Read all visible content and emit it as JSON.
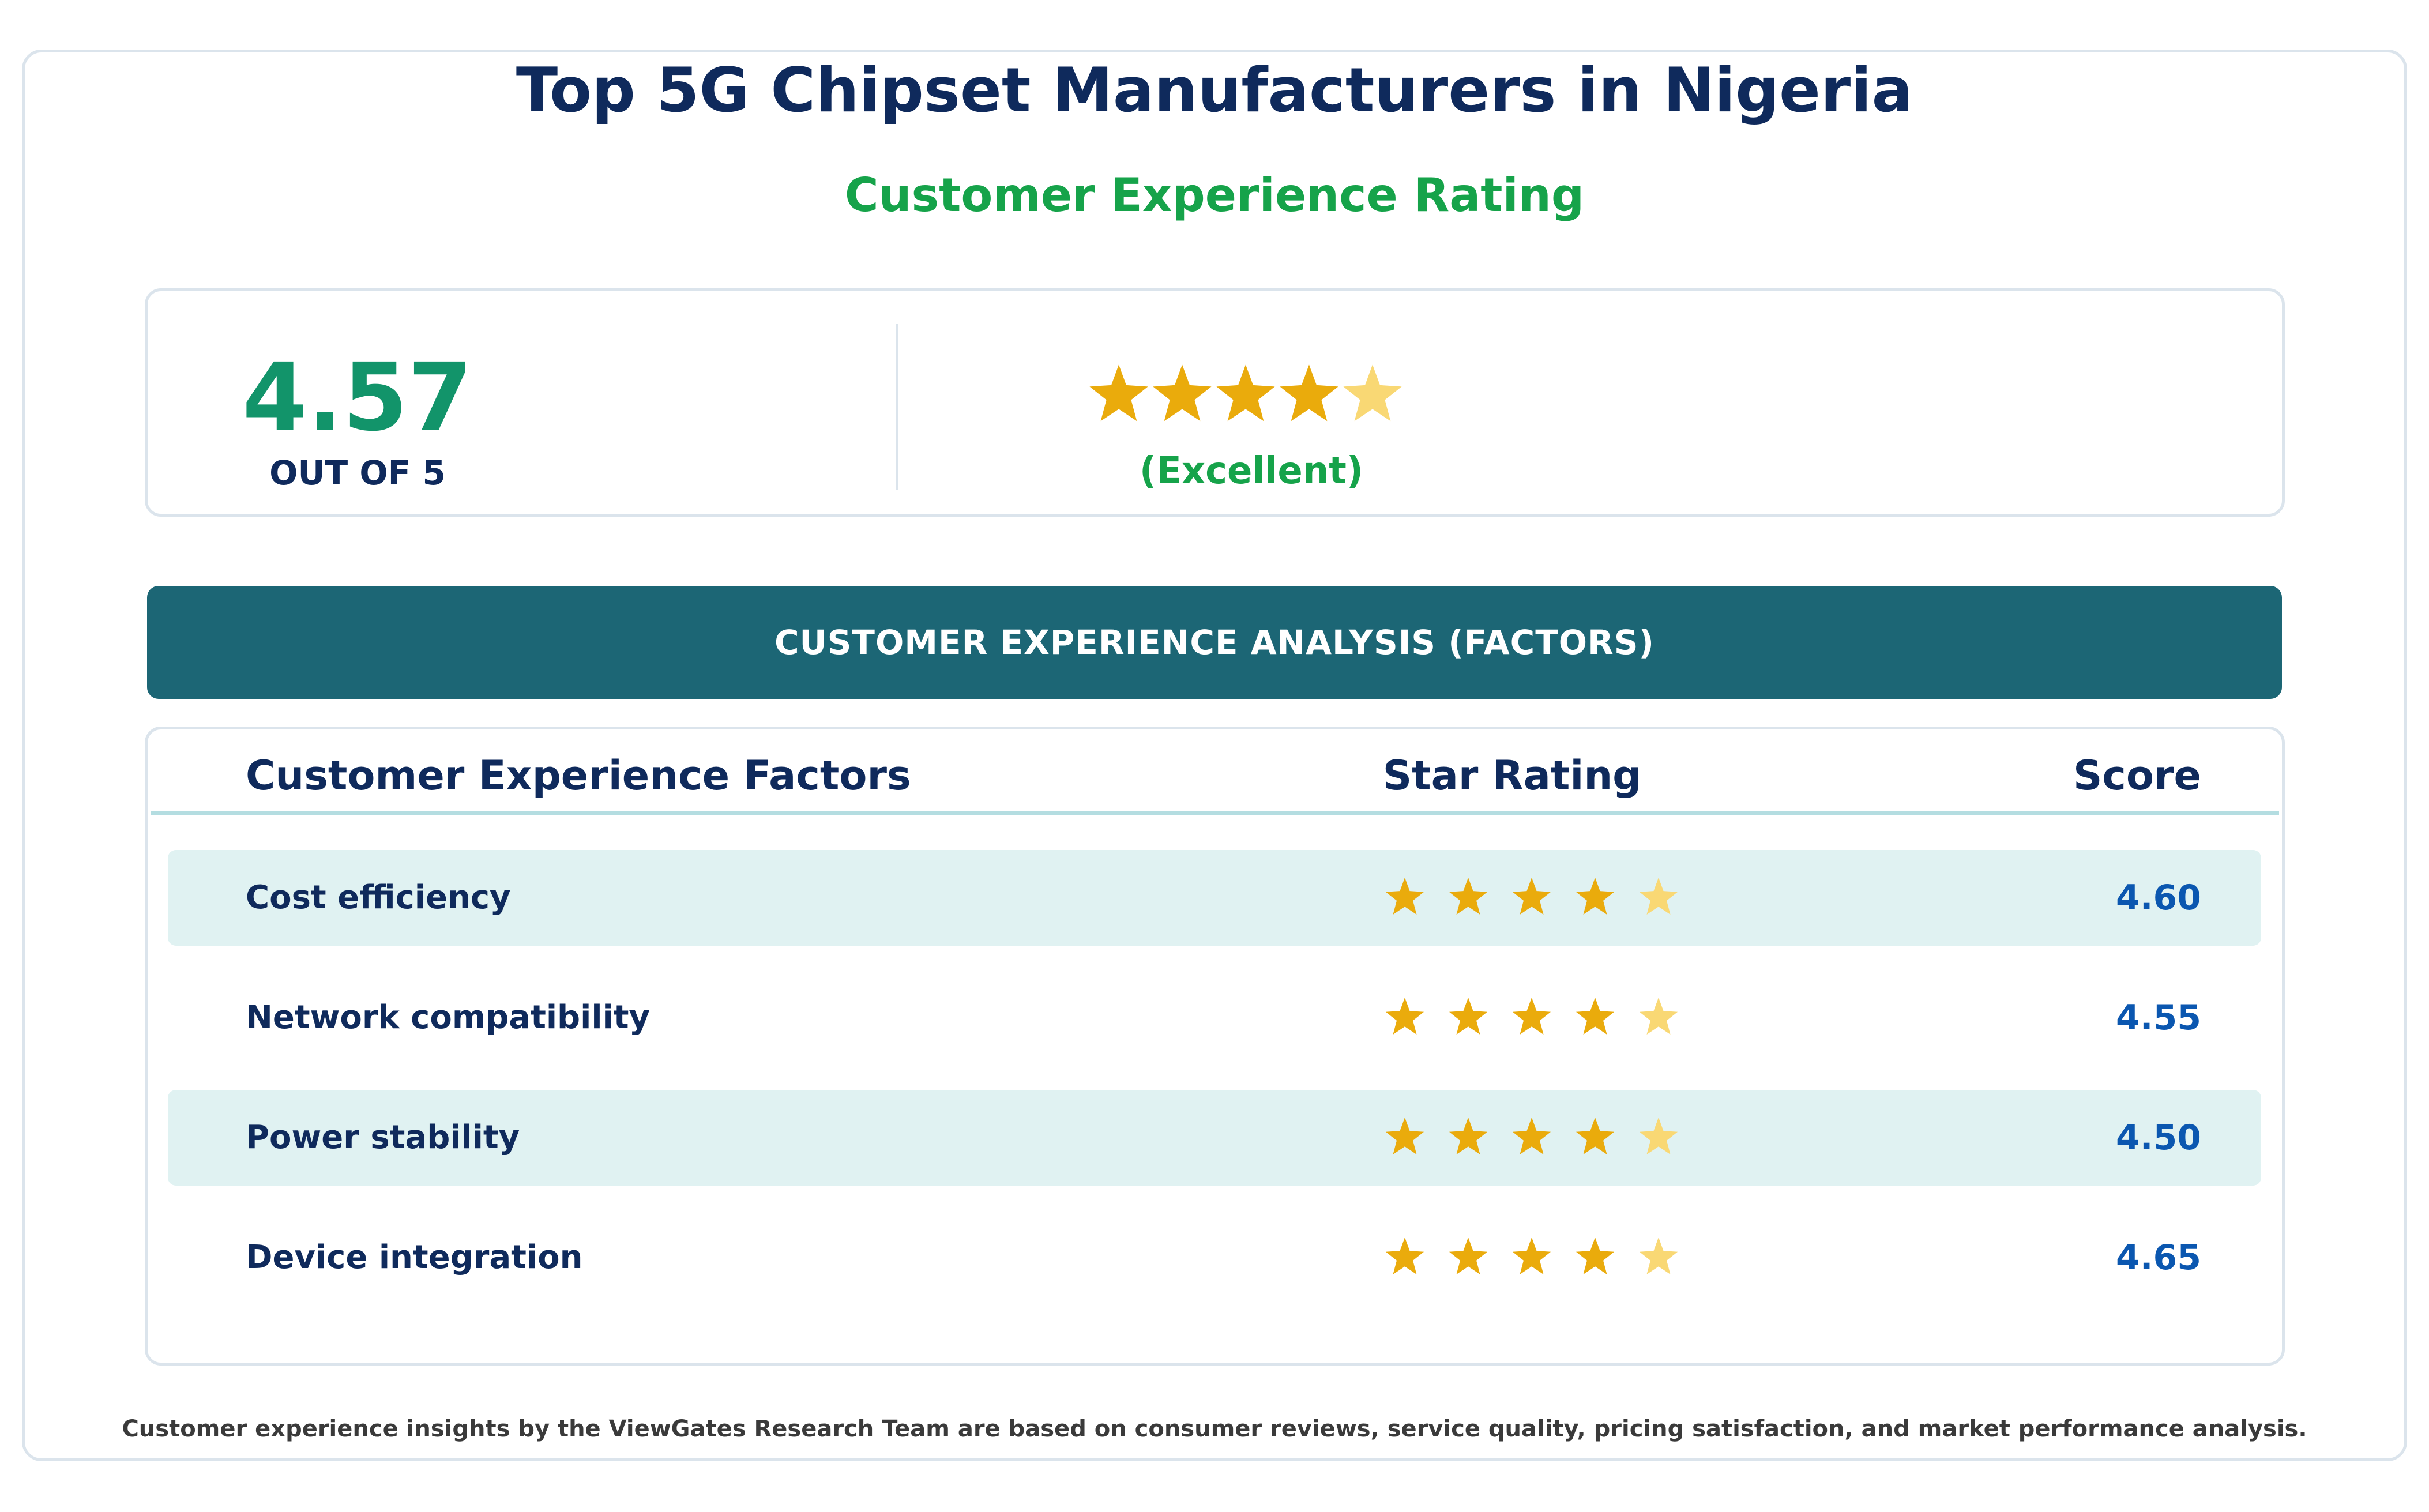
{
  "title": "Top 5G Chipset Manufacturers in Nigeria",
  "subtitle": "Customer Experience Rating",
  "summary": {
    "score": "4.57",
    "score_value": 4.57,
    "out_of": "OUT OF 5",
    "stars_filled": 4,
    "stars_total": 5,
    "verdict": "(Excellent)"
  },
  "banner": "CUSTOMER EXPERIENCE ANALYSIS (FACTORS)",
  "table": {
    "headers": {
      "factor": "Customer Experience Factors",
      "star": "Star Rating",
      "score": "Score"
    },
    "rows": [
      {
        "label": "Cost efficiency",
        "score": "4.60",
        "value": 4.6,
        "stars_filled": 4,
        "stars_total": 5
      },
      {
        "label": "Network compatibility",
        "score": "4.55",
        "value": 4.55,
        "stars_filled": 4,
        "stars_total": 5
      },
      {
        "label": "Power stability",
        "score": "4.50",
        "value": 4.5,
        "stars_filled": 4,
        "stars_total": 5
      },
      {
        "label": "Device integration",
        "score": "4.65",
        "value": 4.65,
        "stars_filled": 4,
        "stars_total": 5
      }
    ]
  },
  "footnote": "Customer experience insights by the ViewGates Research Team are based on consumer reviews, service quality, pricing satisfaction, and market performance analysis.",
  "colors": {
    "star_full": "#eaab0c",
    "star_partial": "#f9d874",
    "navy": "#0f2a5c",
    "green": "#16a34a",
    "teal_banner": "#1c6675",
    "score_blue": "#0b57b0",
    "row_shade": "#e0f2f2"
  }
}
